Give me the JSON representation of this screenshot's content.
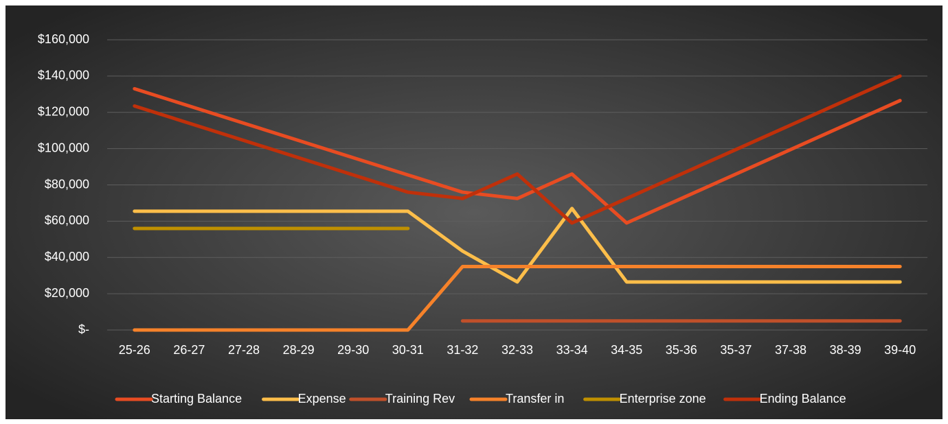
{
  "chart_data": {
    "type": "line",
    "categories": [
      "25-26",
      "26-27",
      "27-28",
      "28-29",
      "29-30",
      "30-31",
      "31-32",
      "32-33",
      "33-34",
      "34-35",
      "35-36",
      "35-37",
      "37-38",
      "38-39",
      "39-40"
    ],
    "series": [
      {
        "name": "Starting Balance",
        "color": "#e84c22",
        "values": [
          133000,
          123500,
          114000,
          104500,
          95000,
          85500,
          76000,
          72500,
          86000,
          59000,
          72500,
          86000,
          99500,
          113000,
          126500
        ]
      },
      {
        "name": "Expense",
        "color": "#fdbe4a",
        "values": [
          65500,
          65500,
          65500,
          65500,
          65500,
          65500,
          43500,
          26500,
          67000,
          26500,
          26500,
          26500,
          26500,
          26500,
          26500
        ]
      },
      {
        "name": "Training Rev",
        "color": "#c0502a",
        "values": [
          null,
          null,
          null,
          null,
          null,
          null,
          5000,
          5000,
          5000,
          5000,
          5000,
          5000,
          5000,
          5000,
          5000
        ]
      },
      {
        "name": "Transfer in",
        "color": "#f6822a",
        "values": [
          0,
          0,
          0,
          0,
          0,
          0,
          35000,
          35000,
          35000,
          35000,
          35000,
          35000,
          35000,
          35000,
          35000
        ]
      },
      {
        "name": "Enterprise zone",
        "color": "#bf9000",
        "values": [
          56000,
          56000,
          56000,
          56000,
          56000,
          56000,
          null,
          null,
          null,
          null,
          null,
          null,
          null,
          null,
          null
        ]
      },
      {
        "name": "Ending Balance",
        "color": "#c0300a",
        "values": [
          123500,
          114000,
          104500,
          95000,
          85500,
          76000,
          72500,
          86000,
          59000,
          72500,
          86000,
          99500,
          113000,
          126500,
          140000
        ]
      }
    ],
    "ylim": [
      0,
      160000
    ],
    "yticks": [
      {
        "value": 0,
        "label": "$-"
      },
      {
        "value": 20000,
        "label": "$20,000"
      },
      {
        "value": 40000,
        "label": "$40,000"
      },
      {
        "value": 60000,
        "label": "$60,000"
      },
      {
        "value": 80000,
        "label": "$80,000"
      },
      {
        "value": 100000,
        "label": "$100,000"
      },
      {
        "value": 120000,
        "label": "$120,000"
      },
      {
        "value": 140000,
        "label": "$140,000"
      },
      {
        "value": 160000,
        "label": "$160,000"
      }
    ],
    "grid": true,
    "legend": "bottom"
  }
}
